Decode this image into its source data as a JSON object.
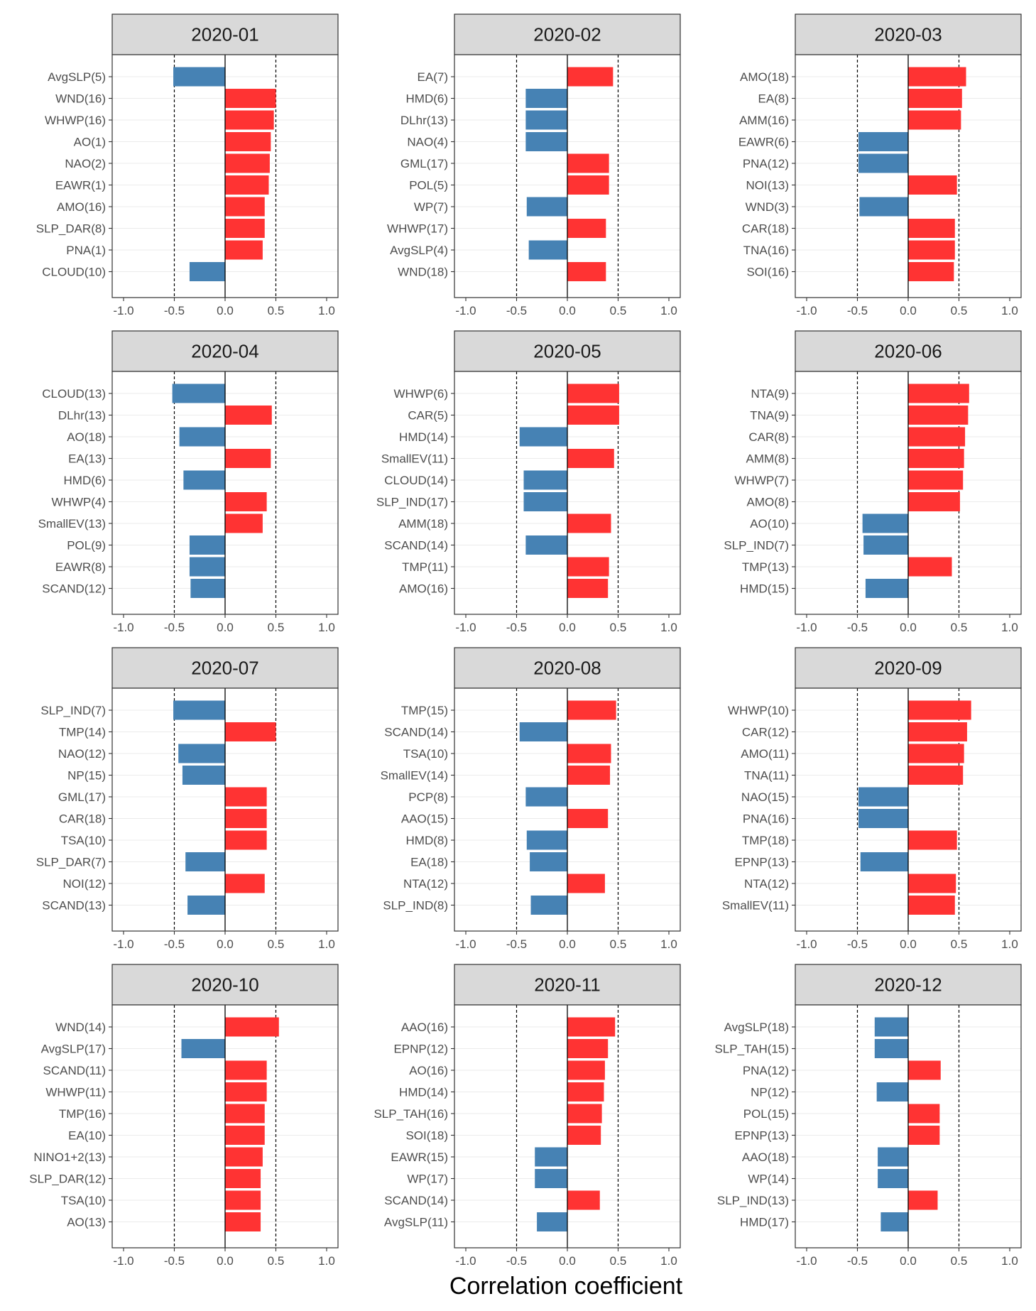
{
  "chart_data": {
    "type": "bar",
    "orientation": "horizontal",
    "layout": "facet-grid-4x3",
    "xlabel": "Correlation coefficient",
    "xlim": [
      -1.0,
      1.0
    ],
    "xticks": [
      "-1.0",
      "-0.5",
      "0.0",
      "0.5",
      "1.0"
    ],
    "xtick_values": [
      -1.0,
      -0.5,
      0.0,
      0.5,
      1.0
    ],
    "reference_lines": [
      -0.5,
      0.5
    ],
    "grid": "horizontal-major",
    "colors": {
      "positive": "#ff3333",
      "negative": "#4682b4",
      "strip": "#d9d9d9"
    },
    "panels": [
      {
        "title": "2020-01",
        "categories": [
          "AvgSLP(5)",
          "WND(16)",
          "WHWP(16)",
          "AO(1)",
          "NAO(2)",
          "EAWR(1)",
          "AMO(16)",
          "SLP_DAR(8)",
          "PNA(1)",
          "CLOUD(10)"
        ],
        "values": [
          -0.51,
          0.5,
          0.48,
          0.45,
          0.44,
          0.43,
          0.39,
          0.39,
          0.37,
          -0.35
        ]
      },
      {
        "title": "2020-02",
        "categories": [
          "EA(7)",
          "HMD(6)",
          "DLhr(13)",
          "NAO(4)",
          "GML(17)",
          "POL(5)",
          "WP(7)",
          "WHWP(17)",
          "AvgSLP(4)",
          "WND(18)"
        ],
        "values": [
          0.45,
          -0.41,
          -0.41,
          -0.41,
          0.41,
          0.41,
          -0.4,
          0.38,
          -0.38,
          0.38
        ]
      },
      {
        "title": "2020-03",
        "categories": [
          "AMO(18)",
          "EA(8)",
          "AMM(16)",
          "EAWR(6)",
          "PNA(12)",
          "NOI(13)",
          "WND(3)",
          "CAR(18)",
          "TNA(16)",
          "SOI(16)"
        ],
        "values": [
          0.57,
          0.53,
          0.52,
          -0.49,
          -0.49,
          0.48,
          -0.48,
          0.46,
          0.46,
          0.45
        ]
      },
      {
        "title": "2020-04",
        "categories": [
          "CLOUD(13)",
          "DLhr(13)",
          "AO(18)",
          "EA(13)",
          "HMD(6)",
          "WHWP(4)",
          "SmallEV(13)",
          "POL(9)",
          "EAWR(8)",
          "SCAND(12)"
        ],
        "values": [
          -0.52,
          0.46,
          -0.45,
          0.45,
          -0.41,
          0.41,
          0.37,
          -0.35,
          -0.35,
          -0.34
        ]
      },
      {
        "title": "2020-05",
        "categories": [
          "WHWP(6)",
          "CAR(5)",
          "HMD(14)",
          "SmallEV(11)",
          "CLOUD(14)",
          "SLP_IND(17)",
          "AMM(18)",
          "SCAND(14)",
          "TMP(11)",
          "AMO(16)"
        ],
        "values": [
          0.51,
          0.51,
          -0.47,
          0.46,
          -0.43,
          -0.43,
          0.43,
          -0.41,
          0.41,
          0.4
        ]
      },
      {
        "title": "2020-06",
        "categories": [
          "NTA(9)",
          "TNA(9)",
          "CAR(8)",
          "AMM(8)",
          "WHWP(7)",
          "AMO(8)",
          "AO(10)",
          "SLP_IND(7)",
          "TMP(13)",
          "HMD(15)"
        ],
        "values": [
          0.6,
          0.59,
          0.56,
          0.55,
          0.54,
          0.51,
          -0.45,
          -0.44,
          0.43,
          -0.42
        ]
      },
      {
        "title": "2020-07",
        "categories": [
          "SLP_IND(7)",
          "TMP(14)",
          "NAO(12)",
          "NP(15)",
          "GML(17)",
          "CAR(18)",
          "TSA(10)",
          "SLP_DAR(7)",
          "NOI(12)",
          "SCAND(13)"
        ],
        "values": [
          -0.51,
          0.5,
          -0.46,
          -0.42,
          0.41,
          0.41,
          0.41,
          -0.39,
          0.39,
          -0.37
        ]
      },
      {
        "title": "2020-08",
        "categories": [
          "TMP(15)",
          "SCAND(14)",
          "TSA(10)",
          "SmallEV(14)",
          "PCP(8)",
          "AAO(15)",
          "HMD(8)",
          "EA(18)",
          "NTA(12)",
          "SLP_IND(8)"
        ],
        "values": [
          0.48,
          -0.47,
          0.43,
          0.42,
          -0.41,
          0.4,
          -0.4,
          -0.37,
          0.37,
          -0.36
        ]
      },
      {
        "title": "2020-09",
        "categories": [
          "WHWP(10)",
          "CAR(12)",
          "AMO(11)",
          "TNA(11)",
          "NAO(15)",
          "PNA(16)",
          "TMP(18)",
          "EPNP(13)",
          "NTA(12)",
          "SmallEV(11)"
        ],
        "values": [
          0.62,
          0.58,
          0.55,
          0.54,
          -0.49,
          -0.49,
          0.48,
          -0.47,
          0.47,
          0.46
        ]
      },
      {
        "title": "2020-10",
        "categories": [
          "WND(14)",
          "AvgSLP(17)",
          "SCAND(11)",
          "WHWP(11)",
          "TMP(16)",
          "EA(10)",
          "NINO1+2(13)",
          "SLP_DAR(12)",
          "TSA(10)",
          "AO(13)"
        ],
        "values": [
          0.53,
          -0.43,
          0.41,
          0.41,
          0.39,
          0.39,
          0.37,
          0.35,
          0.35,
          0.35
        ]
      },
      {
        "title": "2020-11",
        "categories": [
          "AAO(16)",
          "EPNP(12)",
          "AO(16)",
          "HMD(14)",
          "SLP_TAH(16)",
          "SOI(18)",
          "EAWR(15)",
          "WP(17)",
          "SCAND(14)",
          "AvgSLP(11)"
        ],
        "values": [
          0.47,
          0.4,
          0.37,
          0.36,
          0.34,
          0.33,
          -0.32,
          -0.32,
          0.32,
          -0.3
        ]
      },
      {
        "title": "2020-12",
        "categories": [
          "AvgSLP(18)",
          "SLP_TAH(15)",
          "PNA(12)",
          "NP(12)",
          "POL(15)",
          "EPNP(13)",
          "AAO(18)",
          "WP(14)",
          "SLP_IND(13)",
          "HMD(17)"
        ],
        "values": [
          -0.33,
          -0.33,
          0.32,
          -0.31,
          0.31,
          0.31,
          -0.3,
          -0.3,
          0.29,
          -0.27
        ]
      }
    ]
  }
}
